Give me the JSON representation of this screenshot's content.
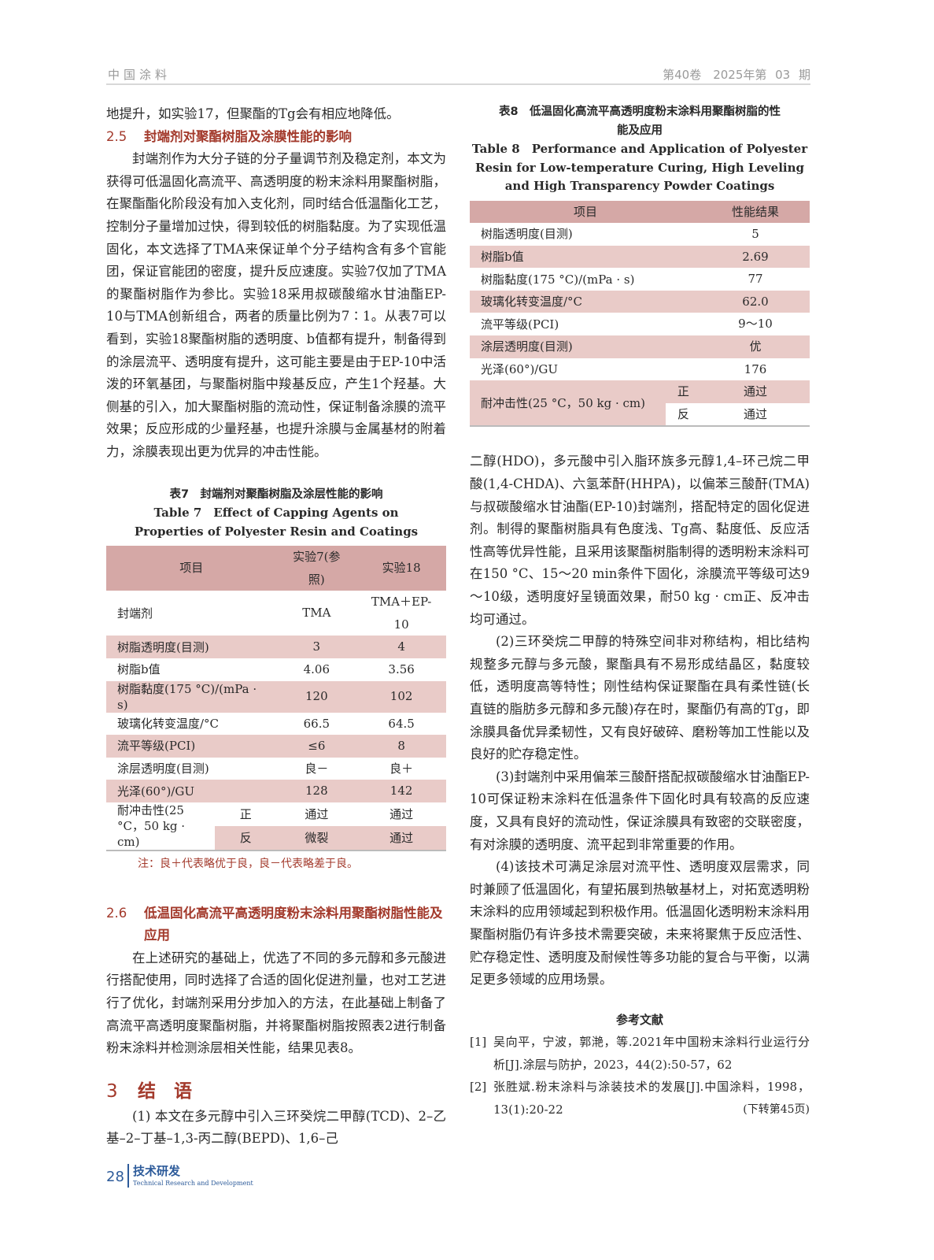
{
  "header": {
    "journal": "中国涂料",
    "issue": "第40卷　2025年第 03 期"
  },
  "left": {
    "cont_line": "地提升，如实验17，但聚酯的Tg会有相应地降低。",
    "sec25": {
      "num": "2.5",
      "title": "封端剂对聚酯树脂及涂膜性能的影响"
    },
    "para25": "封端剂作为大分子链的分子量调节剂及稳定剂，本文为获得可低温固化高流平、高透明度的粉末涂料用聚酯树脂，在聚酯酯化阶段没有加入支化剂，同时结合低温酯化工艺，控制分子量增加过快，得到较低的树脂黏度。为了实现低温固化，本文选择了TMA来保证单个分子结构含有多个官能团，保证官能团的密度，提升反应速度。实验7仅加了TMA的聚酯树脂作为参比。实验18采用叔碳酸缩水甘油酯EP-10与TMA创新组合，两者的质量比例为7∶1。从表7可以看到，实验18聚酯树脂的透明度、b值都有提升，制备得到的涂层流平、透明度有提升，这可能主要是由于EP-10中活泼的环氧基团，与聚酯树脂中羧基反应，产生1个羟基。大侧基的引入，加大聚酯树脂的流动性，保证制备涂膜的流平效果；反应形成的少量羟基，也提升涂膜与金属基材的附着力，涂膜表现出更为优异的冲击性能。",
    "table7": {
      "caption_cn": "表7　封端剂对聚酯树脂及涂层性能的影响",
      "caption_en": "Table 7　Effect of Capping Agents on Properties of Polyester Resin and Coatings",
      "headers": [
        "项目",
        "实验7(参照)",
        "实验18"
      ],
      "rows": [
        [
          "封端剂",
          "TMA",
          "TMA＋EP-10"
        ],
        [
          "树脂透明度(目测)",
          "3",
          "4"
        ],
        [
          "树脂b值",
          "4.06",
          "3.56"
        ],
        [
          "树脂黏度(175 °C)/(mPa · s)",
          "120",
          "102"
        ],
        [
          "玻璃化转变温度/°C",
          "66.5",
          "64.5"
        ],
        [
          "流平等级(PCI)",
          "≤6",
          "8"
        ],
        [
          "涂层透明度(目测)",
          "良－",
          "良＋"
        ],
        [
          "光泽(60°)/GU",
          "128",
          "142"
        ]
      ],
      "impact": {
        "label": "耐冲击性(25 °C，50 kg · cm)",
        "front": [
          "正",
          "通过",
          "通过"
        ],
        "back": [
          "反",
          "微裂",
          "通过"
        ]
      },
      "note": "注：良＋代表略优于良，良－代表略差于良。"
    },
    "sec26": {
      "num": "2.6",
      "title": "低温固化高流平高透明度粉末涂料用聚酯树脂性能及应用"
    },
    "para26": "在上述研究的基础上，优选了不同的多元醇和多元酸进行搭配使用，同时选择了合适的固化促进剂量，也对工艺进行了优化，封端剂采用分步加入的方法，在此基础上制备了高流平高透明度聚酯树脂，并将聚酯树脂按照表2进行制备粉末涂料并检测涂层相关性能，结果见表8。",
    "sec3": {
      "num": "3",
      "title": "结　语"
    },
    "para3_1": "(1) 本文在多元醇中引入三环癸烷二甲醇(TCD)、2–乙基–2–丁基–1,3-丙二醇(BEPD)、1,6–己"
  },
  "right": {
    "table8": {
      "caption_cn": "表8　低温固化高流平高透明度粉末涂料用聚酯树脂的性能及应用",
      "caption_en": "Table 8　Performance and Application of Polyester Resin for Low-temperature Curing, High Leveling and High Transparency Powder Coatings",
      "headers": [
        "项目",
        "性能结果"
      ],
      "rows": [
        [
          "树脂透明度(目测)",
          "5"
        ],
        [
          "树脂b值",
          "2.69"
        ],
        [
          "树脂黏度(175 °C)/(mPa · s)",
          "77"
        ],
        [
          "玻璃化转变温度/°C",
          "62.0"
        ],
        [
          "流平等级(PCI)",
          "9～10"
        ],
        [
          "涂层透明度(目测)",
          "优"
        ],
        [
          "光泽(60°)/GU",
          "176"
        ]
      ],
      "impact": {
        "label": "耐冲击性(25 °C，50 kg · cm)",
        "front": [
          "正",
          "通过"
        ],
        "back": [
          "反",
          "通过"
        ]
      }
    },
    "para3_1_cont": "二醇(HDO)，多元酸中引入脂环族多元醇1,4–环己烷二甲酸(1,4-CHDA)、六氢苯酐(HHPA)，以偏苯三酸酐(TMA)与叔碳酸缩水甘油酯(EP-10)封端剂，搭配特定的固化促进剂。制得的聚酯树脂具有色度浅、Tg高、黏度低、反应活性高等优异性能，且采用该聚酯树脂制得的透明粉末涂料可在150 °C、15～20 min条件下固化，涂膜流平等级可达9～10级，透明度好呈镜面效果，耐50 kg · cm正、反冲击均可通过。",
    "para3_2": "(2)三环癸烷二甲醇的特殊空间非对称结构，相比结构规整多元醇与多元酸，聚酯具有不易形成结晶区，黏度较低，透明度高等特性；刚性结构保证聚酯在具有柔性链(长直链的脂肪多元醇和多元酸)存在时，聚酯仍有高的Tg，即涂膜具备优异柔韧性，又有良好破碎、磨粉等加工性能以及良好的贮存稳定性。",
    "para3_3": "(3)封端剂中采用偏苯三酸酐搭配叔碳酸缩水甘油酯EP-10可保证粉末涂料在低温条件下固化时具有较高的反应速度，又具有良好的流动性，保证涂膜具有致密的交联密度，有对涂膜的透明度、流平起到非常重要的作用。",
    "para3_4": "(4)该技术可满足涂层对流平性、透明度双层需求，同时兼顾了低温固化，有望拓展到热敏基材上，对拓宽透明粉末涂料的应用领域起到积极作用。低温固化透明粉末涂料用聚酯树脂仍有许多技术需要突破，未来将聚焦于反应活性、贮存稳定性、透明度及耐候性等多功能的复合与平衡，以满足更多领域的应用场景。",
    "refs_title": "参考文献",
    "refs": [
      {
        "tag": "[1]",
        "text": "吴向平，宁波，郭滟，等.2021年中国粉末涂料行业运行分析[J].涂层与防护，2023，44(2):50-57，62"
      },
      {
        "tag": "[2]",
        "text": "张胜斌.粉末涂料与涂装技术的发展[J].中国涂料，1998，13(1):20-22"
      }
    ],
    "continued": "(下转第45页)"
  },
  "footer": {
    "page": "28",
    "section_cn": "技术研发",
    "section_en": "Technical Research and Development"
  },
  "colors": {
    "heading": "#a33a2c",
    "table_header": "#d5a8a6",
    "table_stripe": "#e9cbc8",
    "footer": "#2d5b9a"
  }
}
